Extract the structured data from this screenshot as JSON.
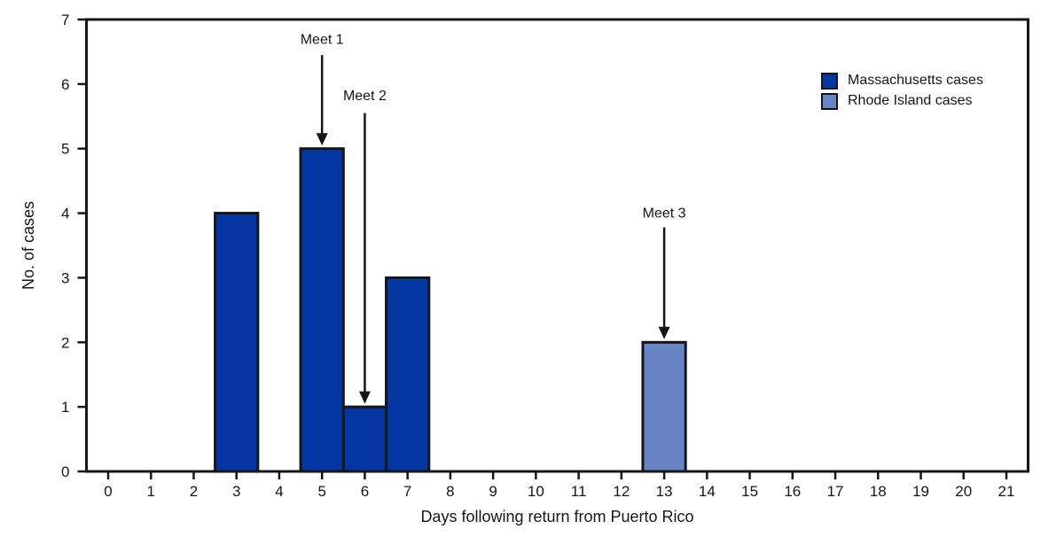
{
  "chart_data": {
    "type": "bar",
    "title": "",
    "xlabel": "Days following return from Puerto Rico",
    "ylabel": "No. of cases",
    "xlim": [
      -0.5,
      21.5
    ],
    "ylim": [
      0,
      7
    ],
    "xticks": [
      0,
      1,
      2,
      3,
      4,
      5,
      6,
      7,
      8,
      9,
      10,
      11,
      12,
      13,
      14,
      15,
      16,
      17,
      18,
      19,
      20,
      21
    ],
    "yticks": [
      0,
      1,
      2,
      3,
      4,
      5,
      6,
      7
    ],
    "bar_width": 1,
    "grid": false,
    "axis_color": "#161616",
    "text_color": "#161616",
    "legend": {
      "position": "top-right",
      "entries": [
        "Massachusetts cases",
        "Rhode Island cases"
      ]
    },
    "series": [
      {
        "name": "Massachusetts cases",
        "color": "#0437A4",
        "points": [
          {
            "x": 3,
            "y": 4
          },
          {
            "x": 5,
            "y": 5
          },
          {
            "x": 6,
            "y": 1
          },
          {
            "x": 7,
            "y": 3
          }
        ]
      },
      {
        "name": "Rhode Island cases",
        "color": "#6785C5",
        "points": [
          {
            "x": 13,
            "y": 2
          }
        ]
      }
    ],
    "annotations": [
      {
        "label": "Meet 1",
        "x": 5,
        "label_y": 6.62,
        "arrow_from_y": 6.45,
        "arrow_to_y": 5
      },
      {
        "label": "Meet 2",
        "x": 6,
        "label_y": 5.75,
        "arrow_from_y": 5.55,
        "arrow_to_y": 1
      },
      {
        "label": "Meet 3",
        "x": 13,
        "label_y": 3.93,
        "arrow_from_y": 3.78,
        "arrow_to_y": 2
      }
    ]
  }
}
